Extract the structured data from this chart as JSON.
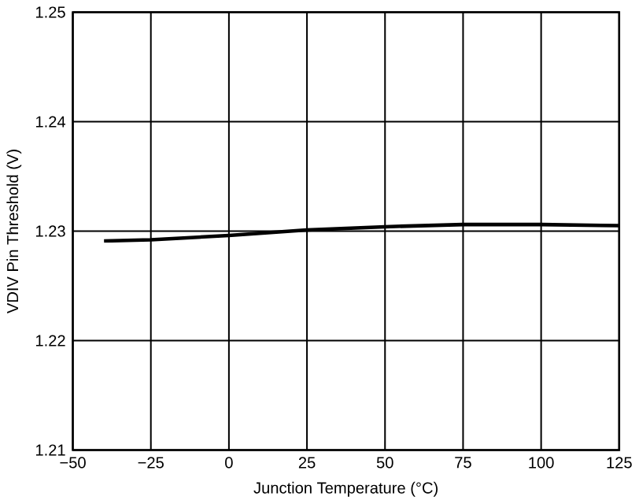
{
  "chart_data": {
    "type": "line",
    "xlabel": "Junction Temperature (°C)",
    "ylabel": "VDIV Pin Threshold (V)",
    "x": [
      -40,
      -25,
      0,
      25,
      50,
      75,
      100,
      125
    ],
    "values": [
      1.2291,
      1.2292,
      1.2296,
      1.2301,
      1.2304,
      1.2306,
      1.2306,
      1.2305
    ],
    "color": "#000000",
    "xlim": [
      -50,
      125
    ],
    "ylim": [
      1.21,
      1.25
    ],
    "xticks": [
      {
        "value": -50,
        "label": "−50"
      },
      {
        "value": -25,
        "label": "−25"
      },
      0,
      25,
      50,
      75,
      100,
      125
    ],
    "yticks": [
      1.21,
      1.22,
      1.23,
      1.24,
      1.25
    ],
    "grid": true,
    "line_style": "solid"
  }
}
